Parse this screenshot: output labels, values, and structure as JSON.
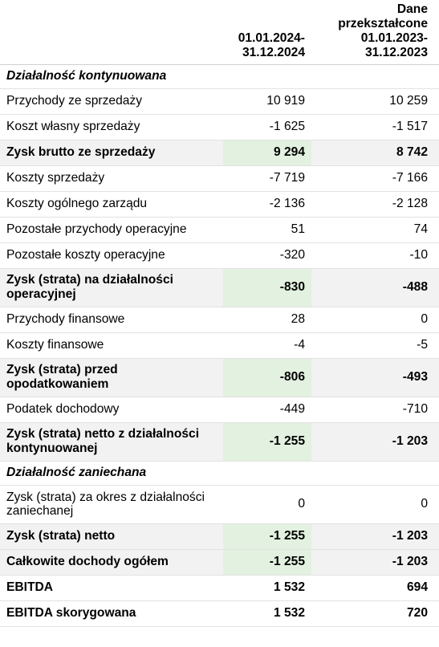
{
  "header": {
    "col_label": "",
    "col_current": [
      "01.01.2024-",
      "31.12.2024"
    ],
    "col_previous": [
      "Dane",
      "przekształcone",
      "01.01.2023-",
      "31.12.2023"
    ]
  },
  "rows": [
    {
      "label": "Działalność kontynuowana",
      "current": "",
      "previous": ""
    },
    {
      "label": "Przychody ze sprzedaży",
      "current": "10 919",
      "previous": "10 259"
    },
    {
      "label": "Koszt własny sprzedaży",
      "current": "-1 625",
      "previous": "-1 517"
    },
    {
      "label": "Zysk brutto ze sprzedaży",
      "current": "9 294",
      "previous": "8 742"
    },
    {
      "label": "Koszty sprzedaży",
      "current": "-7 719",
      "previous": "-7 166"
    },
    {
      "label": "Koszty ogólnego zarządu",
      "current": "-2 136",
      "previous": "-2 128"
    },
    {
      "label": "Pozostałe przychody operacyjne",
      "current": "51",
      "previous": "74"
    },
    {
      "label": "Pozostałe koszty operacyjne",
      "current": "-320",
      "previous": "-10"
    },
    {
      "label": "Zysk (strata) na działalności operacyjnej",
      "current": "-830",
      "previous": "-488"
    },
    {
      "label": "Przychody finansowe",
      "current": "28",
      "previous": "0"
    },
    {
      "label": "Koszty finansowe",
      "current": "-4",
      "previous": "-5"
    },
    {
      "label": "Zysk (strata) przed opodatkowaniem",
      "current": "-806",
      "previous": "-493"
    },
    {
      "label": "Podatek dochodowy",
      "current": "-449",
      "previous": "-710"
    },
    {
      "label": "Zysk (strata) netto z działalności kontynuowanej",
      "current": "-1 255",
      "previous": "-1 203"
    },
    {
      "label": "Działalność zaniechana",
      "current": "",
      "previous": ""
    },
    {
      "label": "Zysk (strata) za okres z działalności zaniechanej",
      "current": "0",
      "previous": "0"
    },
    {
      "label": "Zysk (strata) netto",
      "current": "-1 255",
      "previous": "-1 203"
    },
    {
      "label": "Całkowite dochody ogółem",
      "current": "-1 255",
      "previous": "-1 203"
    },
    {
      "label": "EBITDA",
      "current": "1 532",
      "previous": "694"
    },
    {
      "label": "EBITDA skorygowana",
      "current": "1 532",
      "previous": "720"
    }
  ],
  "colors": {
    "highlight_green": "#e3f1e0",
    "highlight_grey": "#f2f2f2",
    "row_border": "#e2e2e2"
  }
}
